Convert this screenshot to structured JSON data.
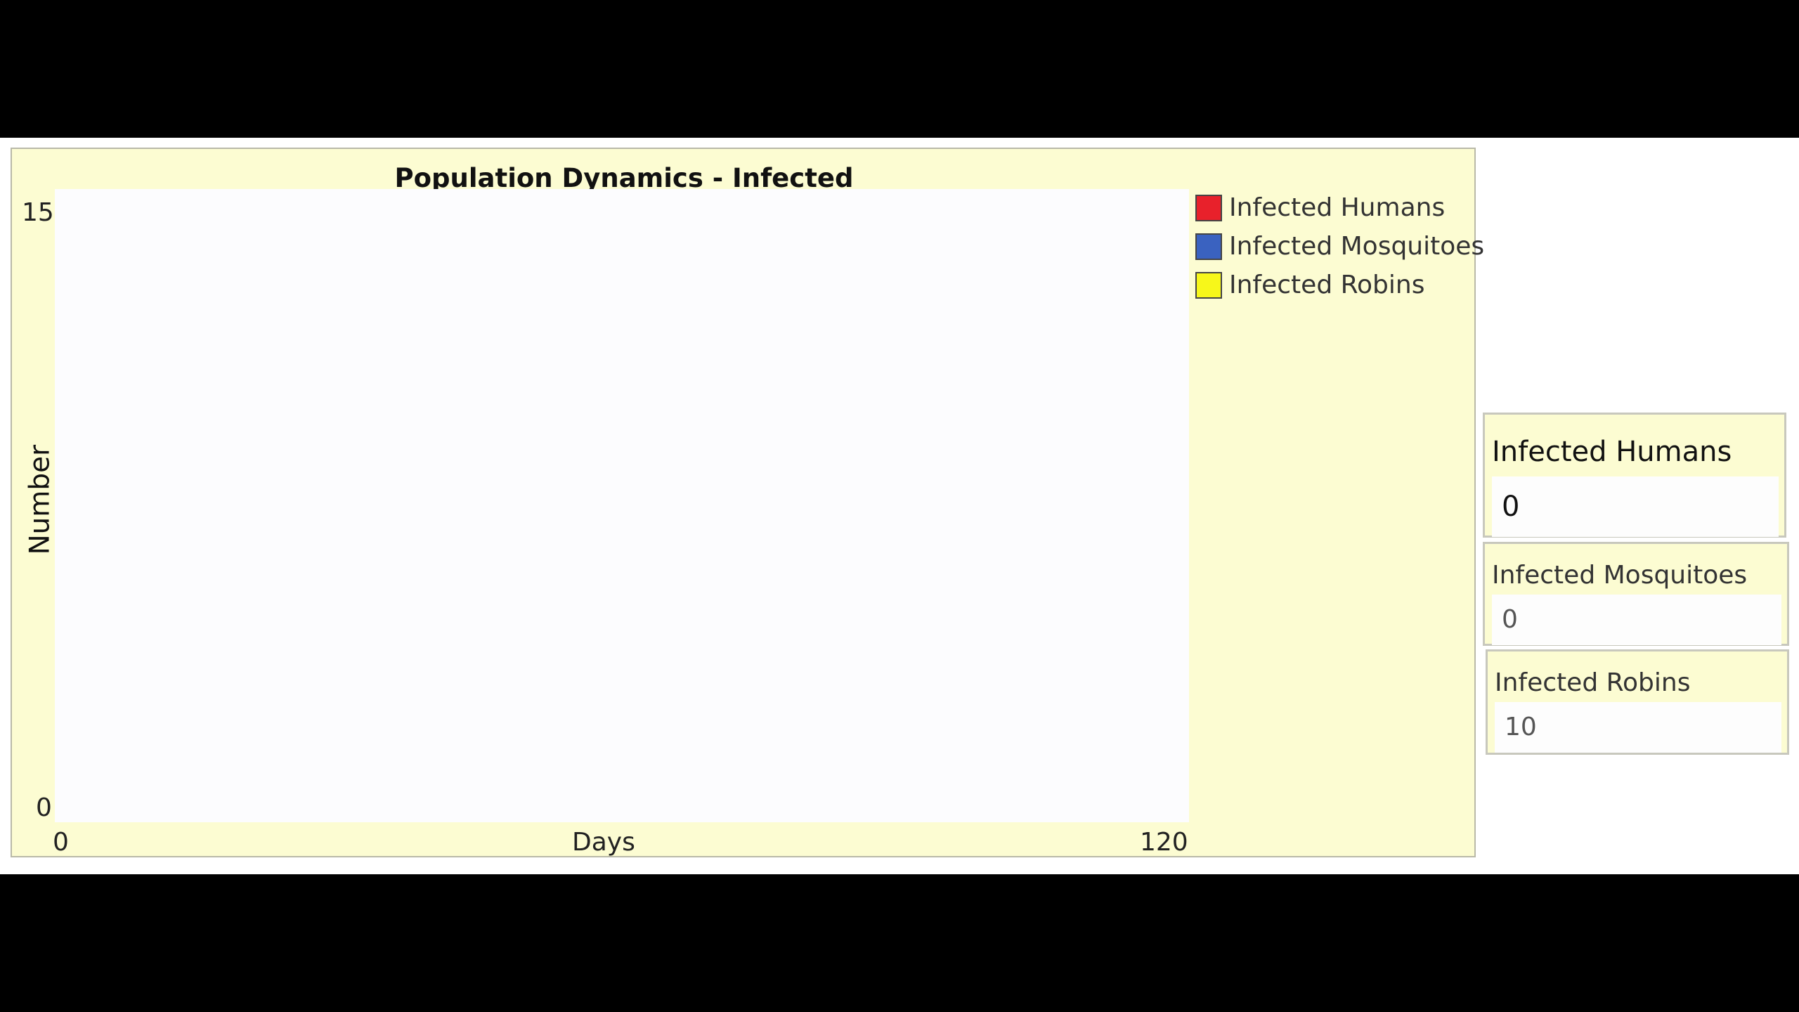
{
  "plot": {
    "title": "Population Dynamics - Infected",
    "x_axis": {
      "label": "Days",
      "min_label": "0",
      "max_label": "120"
    },
    "y_axis": {
      "label": "Number",
      "min_label": "0",
      "max_label": "15"
    },
    "legend": [
      {
        "label": "Infected Humans",
        "color": "#e8212b"
      },
      {
        "label": "Infected Mosquitoes",
        "color": "#3a62c0"
      },
      {
        "label": "Infected Robins",
        "color": "#f7f71a"
      }
    ]
  },
  "chart_data": {
    "type": "line",
    "title": "Population Dynamics - Infected",
    "xlabel": "Days",
    "ylabel": "Number",
    "xlim": [
      0,
      120
    ],
    "ylim": [
      0,
      15
    ],
    "legend_position": "right",
    "series": [
      {
        "name": "Infected Humans",
        "color": "#e8212b",
        "x": [],
        "y": []
      },
      {
        "name": "Infected Mosquitoes",
        "color": "#3a62c0",
        "x": [],
        "y": []
      },
      {
        "name": "Infected Robins",
        "color": "#f7f71a",
        "x": [],
        "y": []
      }
    ]
  },
  "monitors": {
    "humans": {
      "label": "Infected Humans",
      "value": "0"
    },
    "mosquitoes": {
      "label": "Infected Mosquitoes",
      "value": "0"
    },
    "robins": {
      "label": "Infected Robins",
      "value": "10"
    }
  }
}
